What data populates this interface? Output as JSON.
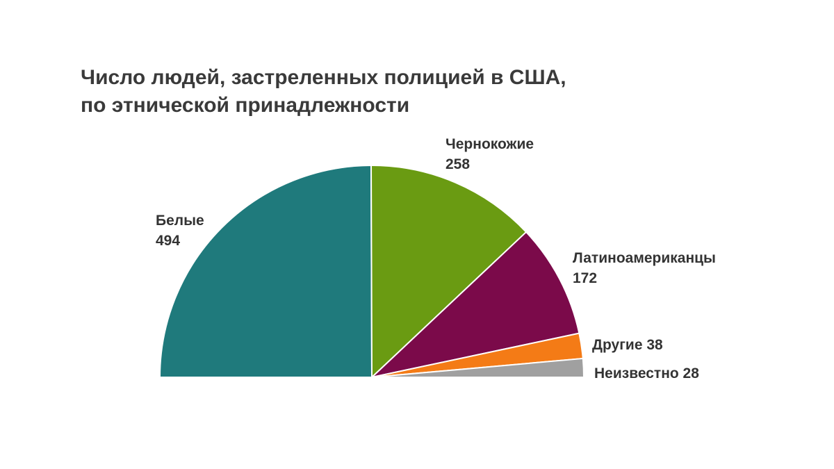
{
  "chart_data": {
    "type": "pie",
    "subtype": "semicircle",
    "title_lines": [
      "Число людей, застреленных полицией в США,",
      "по этнической принадлежности"
    ],
    "slices": [
      {
        "name": "Белые",
        "value": 494,
        "color": "#1f7a7c",
        "label_lines": [
          "Белые",
          "494"
        ]
      },
      {
        "name": "Чернокожие",
        "value": 258,
        "color": "#6a9b12",
        "label_lines": [
          "Чернокожие",
          "258"
        ]
      },
      {
        "name": "Латиноамериканцы",
        "value": 172,
        "color": "#7b0a4a",
        "label_lines": [
          "Латиноамериканцы",
          "172"
        ]
      },
      {
        "name": "Другие",
        "value": 38,
        "color": "#f47b16",
        "label_lines": [
          "Другие 38"
        ]
      },
      {
        "name": "Неизвестно",
        "value": 28,
        "color": "#a0a0a0",
        "label_lines": [
          "Неизвестно 28"
        ]
      }
    ]
  }
}
